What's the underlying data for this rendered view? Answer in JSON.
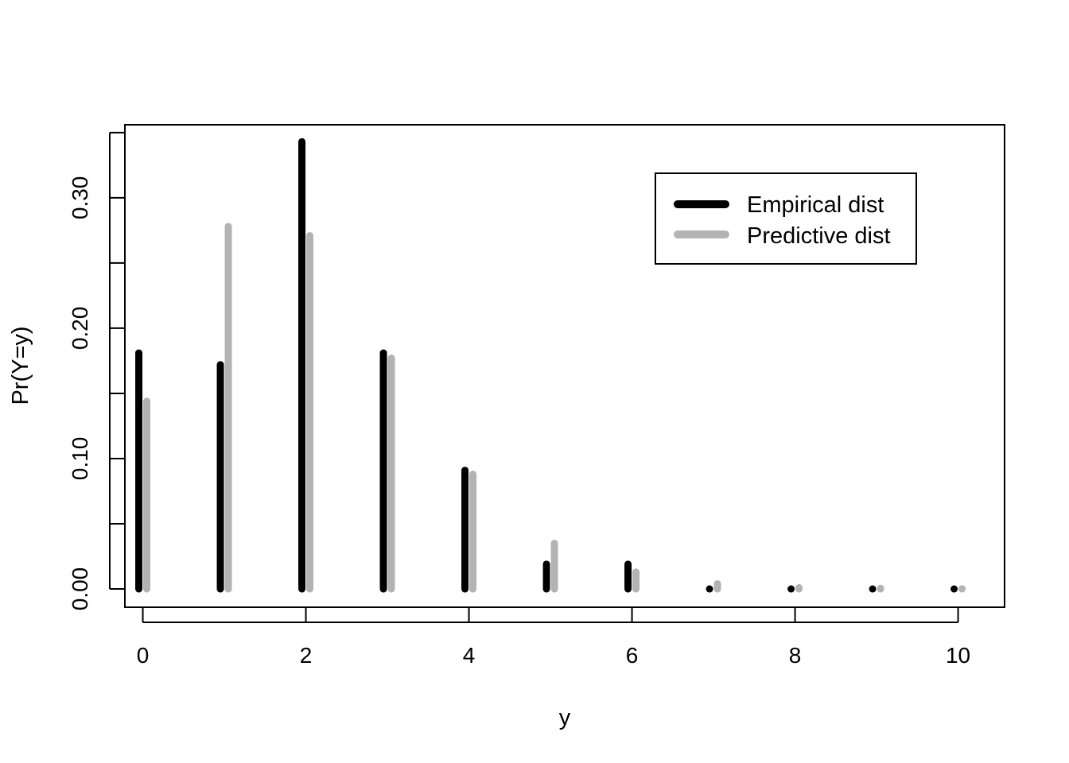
{
  "chart_data": {
    "type": "bar",
    "title": "",
    "xlabel": "y",
    "ylabel": "Pr(Y=y)",
    "x": [
      0,
      1,
      2,
      3,
      4,
      5,
      6,
      7,
      8,
      9,
      10
    ],
    "xticks": [
      "0",
      "2",
      "4",
      "6",
      "8",
      "10"
    ],
    "xlim": [
      -0.22,
      10.57
    ],
    "yticks": [
      "0.00",
      "0.10",
      "0.20",
      "0.30"
    ],
    "ylim": [
      -0.014,
      0.356
    ],
    "grid": false,
    "legend_position": "top-right",
    "series": [
      {
        "name": "Empirical dist",
        "color": "#000000",
        "values": [
          0.181,
          0.172,
          0.343,
          0.181,
          0.091,
          0.019,
          0.019,
          0.0,
          0.0,
          0.0,
          0.0
        ]
      },
      {
        "name": "Predictive dist",
        "color": "#b3b3b3",
        "values": [
          0.144,
          0.278,
          0.271,
          0.177,
          0.088,
          0.035,
          0.013,
          0.004,
          0.001,
          0.0005,
          0.0002
        ]
      }
    ]
  }
}
